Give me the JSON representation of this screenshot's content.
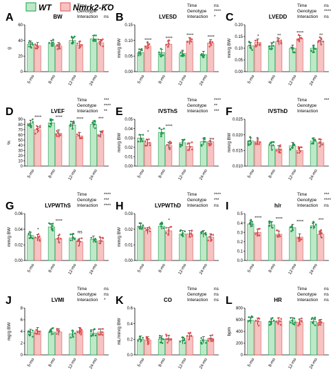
{
  "legend": {
    "wt": "WT",
    "ko": "Nmrk2-KO",
    "wt_color": "#1a9c4a",
    "ko_color": "#e05252",
    "wt_fill": "#bfe8c8",
    "ko_fill": "#f6c2c2"
  },
  "stat_labels": [
    "Time",
    "Genotype",
    "Interaction"
  ],
  "categories": [
    "5-mo",
    "8-mo",
    "12-mo",
    "24-mo"
  ],
  "chart_data": [
    {
      "type": "bar",
      "panel": "A",
      "title": "BW",
      "ylabel": "g",
      "ylim": [
        0,
        60
      ],
      "yticks": [
        "0",
        "20",
        "40",
        "60"
      ],
      "categories": [
        "5-mo",
        "8-mo",
        "12-mo",
        "24-mo"
      ],
      "series": [
        {
          "name": "WT",
          "values": [
            35,
            36,
            40,
            42
          ]
        },
        {
          "name": "Nmrk2-KO",
          "values": [
            33,
            33,
            34,
            37
          ]
        }
      ],
      "stats": [
        "****",
        "*",
        "ns"
      ],
      "sig": [
        "",
        "",
        "",
        ""
      ]
    },
    {
      "type": "bar",
      "panel": "B",
      "title": "LVESD",
      "ylabel": "mm/g BW",
      "ylim": [
        0,
        0.15
      ],
      "yticks": [
        "0.00",
        "0.05",
        "0.10",
        "0.15"
      ],
      "categories": [
        "5-mo",
        "8-mo",
        "12-mo",
        "24-mo"
      ],
      "series": [
        {
          "name": "WT",
          "values": [
            0.061,
            0.061,
            0.058,
            0.055
          ]
        },
        {
          "name": "Nmrk2-KO",
          "values": [
            0.082,
            0.088,
            0.098,
            0.092
          ]
        }
      ],
      "stats": [
        "ns",
        "****",
        "*"
      ],
      "sig": [
        "****",
        "****",
        "****",
        "****"
      ]
    },
    {
      "type": "bar",
      "panel": "C",
      "title": "LVEDD",
      "ylabel": "mm/g BW",
      "ylim": [
        0,
        0.2
      ],
      "yticks": [
        "0.00",
        "0.05",
        "0.10",
        "0.15",
        "0.20"
      ],
      "categories": [
        "5-mo",
        "8-mo",
        "12-mo",
        "24-mo"
      ],
      "series": [
        {
          "name": "WT",
          "values": [
            0.11,
            0.11,
            0.1,
            0.1
          ]
        },
        {
          "name": "Nmrk2-KO",
          "values": [
            0.125,
            0.128,
            0.14,
            0.13
          ]
        }
      ],
      "stats": [
        "ns",
        "****",
        "ns"
      ],
      "sig": [
        "*",
        "**",
        "****",
        "**"
      ]
    },
    {
      "type": "bar",
      "panel": "D",
      "title": "LVEF",
      "ylabel": "%",
      "ylim": [
        0,
        90
      ],
      "yticks": [
        "0",
        "10",
        "20",
        "30",
        "40",
        "50",
        "60",
        "70",
        "80",
        "90"
      ],
      "categories": [
        "5-mo",
        "8-mo",
        "12-mo",
        "24-mo"
      ],
      "series": [
        {
          "name": "WT",
          "values": [
            82,
            83,
            79,
            80
          ]
        },
        {
          "name": "Nmrk2-KO",
          "values": [
            70,
            63,
            58,
            61
          ]
        }
      ],
      "stats": [
        "***",
        "****",
        "**"
      ],
      "sig": [
        "****",
        "****",
        "****",
        "***"
      ]
    },
    {
      "type": "bar",
      "panel": "E",
      "title": "IVSThS",
      "ylabel": "mm/g BW",
      "ylim": [
        0,
        0.05
      ],
      "yticks": [
        "0.00",
        "0.01",
        "0.02",
        "0.03",
        "0.04",
        "0.05"
      ],
      "categories": [
        "5-mo",
        "8-mo",
        "12-mo",
        "24-mo"
      ],
      "series": [
        {
          "name": "WT",
          "values": [
            0.03,
            0.036,
            0.025,
            0.026
          ]
        },
        {
          "name": "Nmrk2-KO",
          "values": [
            0.025,
            0.022,
            0.021,
            0.026
          ]
        }
      ],
      "stats": [
        "****",
        "**",
        "***"
      ],
      "sig": [
        "*",
        "****",
        "",
        ""
      ]
    },
    {
      "type": "bar",
      "panel": "F",
      "title": "IVSThD",
      "ylabel": "mm/g BW",
      "ylim": [
        0.01,
        0.025
      ],
      "yticks": [
        "0.010",
        "0.015",
        "0.020",
        "0.025"
      ],
      "categories": [
        "5-mo",
        "8-mo",
        "12-mo",
        "24-mo"
      ],
      "series": [
        {
          "name": "WT",
          "values": [
            0.018,
            0.0165,
            0.0165,
            0.018
          ]
        },
        {
          "name": "Nmrk2-KO",
          "values": [
            0.0178,
            0.0155,
            0.015,
            0.0175
          ]
        }
      ],
      "stats": [
        "***",
        "",
        ""
      ],
      "sig": [
        "",
        "",
        "",
        ""
      ]
    },
    {
      "type": "bar",
      "panel": "G",
      "title": "LVPWThS",
      "ylabel": "mm/g BW",
      "ylim": [
        0,
        0.06
      ],
      "yticks": [
        "0.00",
        "0.02",
        "0.04",
        "0.06"
      ],
      "categories": [
        "5-mo",
        "8-mo",
        "12-mo",
        "24-mo"
      ],
      "series": [
        {
          "name": "WT",
          "values": [
            0.032,
            0.043,
            0.029,
            0.027
          ]
        },
        {
          "name": "Nmrk2-KO",
          "values": [
            0.029,
            0.028,
            0.024,
            0.025
          ]
        }
      ],
      "stats": [
        "****",
        "***",
        "****"
      ],
      "sig": [
        "*",
        "****",
        "ns",
        ""
      ]
    },
    {
      "type": "bar",
      "panel": "H",
      "title": "LVPWThD",
      "ylabel": "mm/g BW",
      "ylim": [
        0,
        0.03
      ],
      "yticks": [
        "0.00",
        "0.01",
        "0.02",
        "0.03"
      ],
      "categories": [
        "5-mo",
        "8-mo",
        "12-mo",
        "24-mo"
      ],
      "series": [
        {
          "name": "WT",
          "values": [
            0.022,
            0.022,
            0.017,
            0.017
          ]
        },
        {
          "name": "Nmrk2-KO",
          "values": [
            0.019,
            0.019,
            0.017,
            0.015
          ]
        }
      ],
      "stats": [
        "****",
        "***",
        "ns"
      ],
      "sig": [
        "",
        "*",
        "",
        ""
      ]
    },
    {
      "type": "bar",
      "panel": "I",
      "title": "h/r",
      "ylabel": "",
      "ylim": [
        0,
        0.5
      ],
      "yticks": [
        "0.0",
        "0.1",
        "0.2",
        "0.3",
        "0.4",
        "0.5"
      ],
      "categories": [
        "5-mo",
        "8-mo",
        "12-mo",
        "24-mo"
      ],
      "series": [
        {
          "name": "WT",
          "values": [
            0.39,
            0.38,
            0.35,
            0.37
          ]
        },
        {
          "name": "Nmrk2-KO",
          "values": [
            0.3,
            0.28,
            0.25,
            0.28
          ]
        }
      ],
      "stats": [
        "***",
        "****",
        "ns"
      ],
      "sig": [
        "****",
        "****",
        "****",
        "***"
      ]
    },
    {
      "type": "bar",
      "panel": "J",
      "title": "LVMI",
      "ylabel": "mg/g BW",
      "ylim": [
        0,
        8
      ],
      "yticks": [
        "0",
        "2",
        "4",
        "6",
        "8"
      ],
      "categories": [
        "5-mo",
        "8-mo",
        "12-mo",
        "24-mo"
      ],
      "series": [
        {
          "name": "WT",
          "values": [
            3.8,
            3.9,
            3.6,
            3.7
          ]
        },
        {
          "name": "Nmrk2-KO",
          "values": [
            4.1,
            3.9,
            4.1,
            3.9
          ]
        }
      ],
      "stats": [
        "ns",
        "ns",
        "*"
      ],
      "sig": [
        "",
        "",
        "",
        ""
      ]
    },
    {
      "type": "bar",
      "panel": "K",
      "title": "CO",
      "ylabel": "mL/min/g BW",
      "ylim": [
        0,
        0.6
      ],
      "yticks": [
        "0.0",
        "0.2",
        "0.4",
        "0.6"
      ],
      "categories": [
        "5-mo",
        "8-mo",
        "12-mo",
        "24-mo"
      ],
      "series": [
        {
          "name": "WT",
          "values": [
            0.2,
            0.2,
            0.18,
            0.19
          ]
        },
        {
          "name": "Nmrk2-KO",
          "values": [
            0.19,
            0.21,
            0.24,
            0.21
          ]
        }
      ],
      "stats": [
        "ns",
        "ns",
        "ns"
      ],
      "sig": [
        "",
        "",
        "",
        ""
      ]
    },
    {
      "type": "bar",
      "panel": "L",
      "title": "HR",
      "ylabel": "bpm",
      "ylim": [
        0,
        800
      ],
      "yticks": [
        "0",
        "200",
        "400",
        "600",
        "800"
      ],
      "categories": [
        "5-mo",
        "8-mo",
        "12-mo",
        "24-mo"
      ],
      "series": [
        {
          "name": "WT",
          "values": [
            590,
            570,
            580,
            570
          ]
        },
        {
          "name": "Nmrk2-KO",
          "values": [
            570,
            580,
            560,
            550
          ]
        }
      ],
      "stats": [
        "ns",
        "ns",
        "ns"
      ],
      "sig": [
        "",
        "",
        "",
        ""
      ]
    }
  ]
}
